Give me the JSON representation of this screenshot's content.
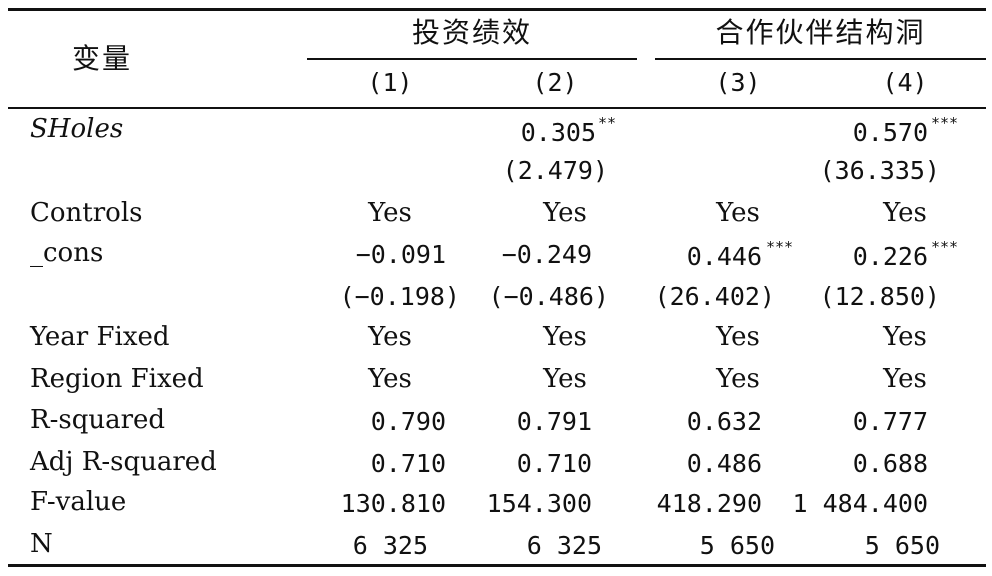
{
  "header": {
    "variable": "变量",
    "group1": "投资绩效",
    "group2": "合作伙伴结构洞",
    "cols": [
      "(1)",
      "(2)",
      "(3)",
      "(4)"
    ]
  },
  "rows": [
    {
      "label": "SHoles",
      "c1": "",
      "c2": "0.305",
      "c3": "",
      "c4": "0.570"
    },
    {
      "label": "",
      "c1": "",
      "c2": "(2.479)",
      "c3": "",
      "c4": "(36.335)"
    },
    {
      "label": "Controls",
      "c1": "Yes",
      "c2": "Yes",
      "c3": "Yes",
      "c4": "Yes"
    },
    {
      "label": "_cons",
      "c1": "−0.091",
      "c2": "−0.249",
      "c3": "0.446",
      "c4": "0.226"
    },
    {
      "label": "",
      "c1": "(−0.198)",
      "c2": "(−0.486)",
      "c3": "(26.402)",
      "c4": "(12.850)"
    },
    {
      "label": "Year Fixed",
      "c1": "Yes",
      "c2": "Yes",
      "c3": "Yes",
      "c4": "Yes"
    },
    {
      "label": "Region Fixed",
      "c1": "Yes",
      "c2": "Yes",
      "c3": "Yes",
      "c4": "Yes"
    },
    {
      "label": "R-squared",
      "c1": "0.790",
      "c2": "0.791",
      "c3": "0.632",
      "c4": "0.777"
    },
    {
      "label": "Adj R-squared",
      "c1": "0.710",
      "c2": "0.710",
      "c3": "0.486",
      "c4": "0.688"
    },
    {
      "label": "F-value",
      "c1": "130.810",
      "c2": "154.300",
      "c3": "418.290",
      "c4": "1 484.400"
    },
    {
      "label": "N",
      "c1": "6 325",
      "c2": "6 325",
      "c3": "5 650",
      "c4": "5 650"
    }
  ],
  "stars": {
    "sholes_c2": "**",
    "sholes_c4": "***",
    "cons_c3": "***",
    "cons_c4": "***"
  }
}
